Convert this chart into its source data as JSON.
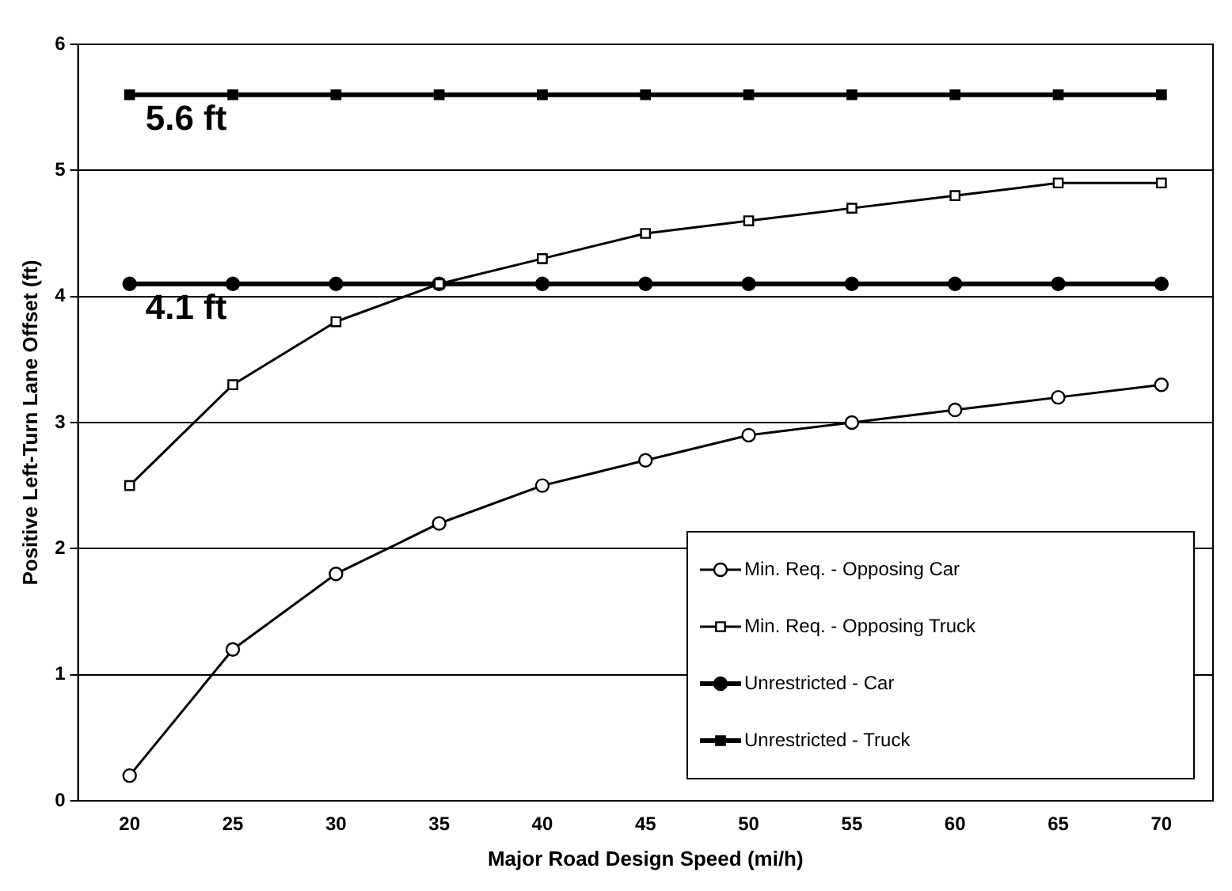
{
  "chart_data": {
    "type": "line",
    "xlabel": "Major Road Design Speed (mi/h)",
    "ylabel": "Positive Left-Turn Lane Offset (ft)",
    "categories": [
      "20",
      "25",
      "30",
      "35",
      "40",
      "45",
      "50",
      "55",
      "60",
      "65",
      "70"
    ],
    "series": [
      {
        "name": "Min. Req. - Opposing Car",
        "color": "#000000",
        "marker": "circle",
        "values": [
          0.2,
          1.2,
          1.8,
          2.2,
          2.5,
          2.7,
          2.9,
          3.0,
          3.1,
          3.2,
          3.3
        ]
      },
      {
        "name": "Min. Req. - Opposing Truck",
        "color": "#000000",
        "marker": "square",
        "values": [
          2.5,
          3.3,
          3.8,
          4.1,
          4.3,
          4.5,
          4.6,
          4.7,
          4.8,
          4.9,
          4.9
        ]
      },
      {
        "name": "Unrestricted - Car",
        "color": "#000000",
        "marker": "circle",
        "values": [
          4.1,
          4.1,
          4.1,
          4.1,
          4.1,
          4.1,
          4.1,
          4.1,
          4.1,
          4.1,
          4.1
        ]
      },
      {
        "name": "Unrestricted - Truck",
        "color": "#000000",
        "marker": "square",
        "values": [
          5.6,
          5.6,
          5.6,
          5.6,
          5.6,
          5.6,
          5.6,
          5.6,
          5.6,
          5.6,
          5.6
        ]
      }
    ],
    "ylim": [
      0,
      6
    ],
    "yticks": [
      0,
      1,
      2,
      3,
      4,
      5,
      6
    ],
    "grid": "y",
    "legend": "bottom right",
    "line_style": "solid",
    "annotations": [
      {
        "text": "5.6 ft",
        "x": "20",
        "y": 5.6
      },
      {
        "text": "4.1 ft",
        "x": "20",
        "y": 4.1
      }
    ]
  }
}
